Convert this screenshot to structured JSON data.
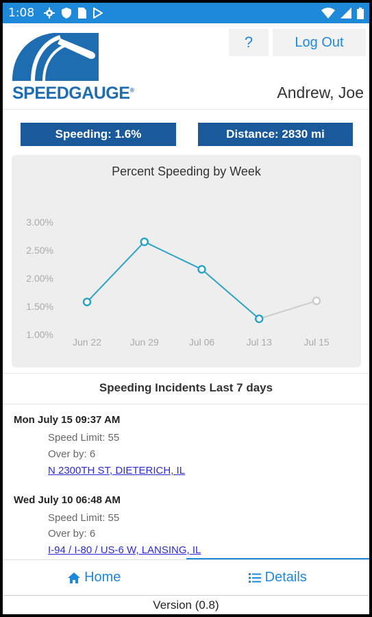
{
  "status_bar": {
    "time": "1:08",
    "left_icons": [
      "gear-icon",
      "shield-icon",
      "sim-card-icon",
      "play-store-icon"
    ],
    "right_icons": [
      "wifi-icon",
      "signal-icon",
      "battery-icon"
    ]
  },
  "header": {
    "logo_text": "SPEEDGAUGE",
    "logo_mark": "®",
    "help_label": "?",
    "logout_label": "Log Out",
    "user_name": "Andrew, Joe"
  },
  "stats": {
    "speeding": "Speeding: 1.6%",
    "distance": "Distance: 2830 mi"
  },
  "chart_data": {
    "type": "line",
    "title": "Percent Speeding by Week",
    "categories": [
      "Jun 22",
      "Jun 29",
      "Jul 06",
      "Jul 13",
      "Jul 15"
    ],
    "y_ticks": [
      "3.00%",
      "2.50%",
      "2.00%",
      "1.50%",
      "1.00%"
    ],
    "ylim": [
      1.0,
      3.0
    ],
    "series": [
      {
        "values": [
          1.58,
          2.65,
          2.16,
          1.28,
          1.6
        ],
        "color": "#2aa3c7",
        "partial_color": "#cccccc"
      }
    ],
    "grid": false
  },
  "incidents": {
    "title": "Speeding Incidents Last 7 days",
    "items": [
      {
        "datetime": "Mon July 15 09:37 AM",
        "speed_limit": "Speed Limit: 55",
        "over_by": "Over by: 6",
        "location": "N 2300TH ST, DIETERICH, IL"
      },
      {
        "datetime": "Wed July 10 06:48 AM",
        "speed_limit": "Speed Limit: 55",
        "over_by": "Over by: 6",
        "location": "I-94 / I-80 / US-6 W, LANSING, IL"
      }
    ]
  },
  "nav": {
    "home_label": "Home",
    "details_label": "Details",
    "active": "details"
  },
  "version": "Version (0.8)",
  "colors": {
    "status_bar": "#1e88d9",
    "stat_bg": "#1b5a9a",
    "accent": "#1e88d9",
    "chart_line": "#2aa3c7",
    "link": "#2b2bd6"
  }
}
